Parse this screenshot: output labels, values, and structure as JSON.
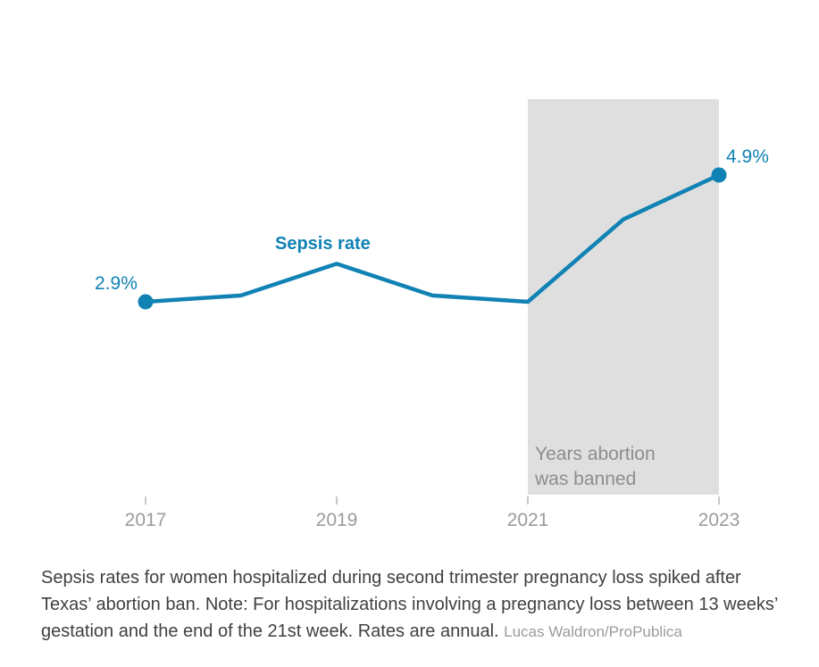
{
  "chart_data": {
    "type": "line",
    "series_label": "Sepsis rate",
    "x": [
      2017,
      2018,
      2019,
      2020,
      2021,
      2022,
      2023
    ],
    "values": [
      2.9,
      3.0,
      3.5,
      3.0,
      2.9,
      4.2,
      4.9
    ],
    "ylim": [
      2.9,
      4.9
    ],
    "first_point_label": "2.9%",
    "last_point_label": "4.9%",
    "tick_labels": [
      "2017",
      "2019",
      "2021",
      "2023"
    ],
    "banned_region": {
      "start_year": 2021,
      "end_year": 2023,
      "label_lines": [
        "Years abortion",
        "was banned"
      ]
    },
    "line_color": "#1082b4",
    "point_color": "#1082b4",
    "band_color": "#dfdfdf",
    "tick_color": "#b5b5b5",
    "axis_label_color": "#9b9b9b",
    "grid": "off",
    "legend_position": "none"
  },
  "caption": {
    "text": "Sepsis rates for women hospitalized during second trimester pregnancy loss spiked after Texas’ abortion ban. Note: For hospitalizations involving a pregnancy loss between 13 weeks’ gestation and the end of the 21st week. Rates are annual.",
    "credit": "Lucas Waldron/ProPublica"
  }
}
